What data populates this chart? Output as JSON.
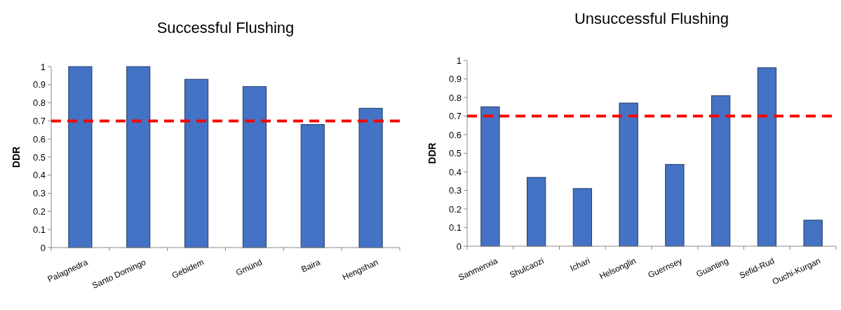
{
  "chart_data": [
    {
      "type": "bar",
      "title": "Successful Flushing",
      "ylabel": "DDR",
      "categories": [
        "Palagnedra",
        "Santo Domingo",
        "Gebidem",
        "Gmünd",
        "Baira",
        "Hengshan"
      ],
      "values": [
        1,
        1,
        0.93,
        0.89,
        0.68,
        0.77
      ],
      "color": "#4472c4",
      "ylim": [
        0,
        1
      ],
      "yticks": [
        0,
        0.1,
        0.2,
        0.3,
        0.4,
        0.5,
        0.6,
        0.7,
        0.8,
        0.9,
        1
      ],
      "grid": false,
      "ref_lines": [
        {
          "axis": "y",
          "value": 0.7,
          "color": "#ff0000",
          "line_style": "dashed"
        }
      ]
    },
    {
      "type": "bar",
      "title": "Unsuccessful Flushing",
      "ylabel": "DDR",
      "categories": [
        "Sanmenxia",
        "Shulcaozi",
        "Ichari",
        "Helsonglin",
        "Guernsey",
        "Guanting",
        "Sefid-Rud",
        "Ouchi-Kurgan"
      ],
      "values": [
        0.75,
        0.37,
        0.31,
        0.77,
        0.44,
        0.81,
        0.96,
        0.14
      ],
      "color": "#4472c4",
      "ylim": [
        0,
        1
      ],
      "yticks": [
        0,
        0.1,
        0.2,
        0.3,
        0.4,
        0.5,
        0.6,
        0.7,
        0.8,
        0.9,
        1
      ],
      "grid": false,
      "ref_lines": [
        {
          "axis": "y",
          "value": 0.7,
          "color": "#ff0000",
          "line_style": "dashed"
        }
      ]
    }
  ]
}
